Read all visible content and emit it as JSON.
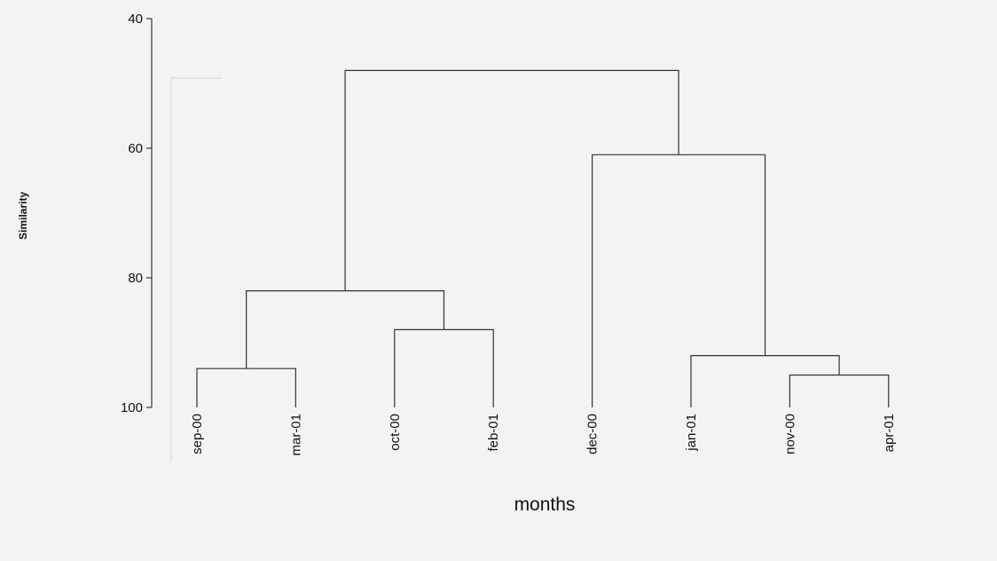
{
  "chart_data": {
    "type": "dendrogram",
    "xlabel": "months",
    "ylabel": "Similarity",
    "ylim": [
      40,
      100
    ],
    "y_inverted": true,
    "y_ticks": [
      40,
      60,
      80,
      100
    ],
    "leaves": [
      "sep-00",
      "mar-01",
      "oct-00",
      "feb-01",
      "dec-00",
      "jan-01",
      "nov-00",
      "apr-01"
    ],
    "merges": [
      {
        "left": "sep-00",
        "right": "mar-01",
        "similarity": 94
      },
      {
        "left": "oct-00",
        "right": "feb-01",
        "similarity": 88
      },
      {
        "left": [
          "sep-00",
          "mar-01"
        ],
        "right": [
          "oct-00",
          "feb-01"
        ],
        "similarity": 82
      },
      {
        "left": "nov-00",
        "right": "apr-01",
        "similarity": 95
      },
      {
        "left": "jan-01",
        "right": [
          "nov-00",
          "apr-01"
        ],
        "similarity": 92
      },
      {
        "left": "dec-00",
        "right": [
          "jan-01",
          "nov-00",
          "apr-01"
        ],
        "similarity": 61
      },
      {
        "left": [
          "sep-00",
          "mar-01",
          "oct-00",
          "feb-01"
        ],
        "right": [
          "dec-00",
          "jan-01",
          "nov-00",
          "apr-01"
        ],
        "similarity": 48
      }
    ]
  }
}
